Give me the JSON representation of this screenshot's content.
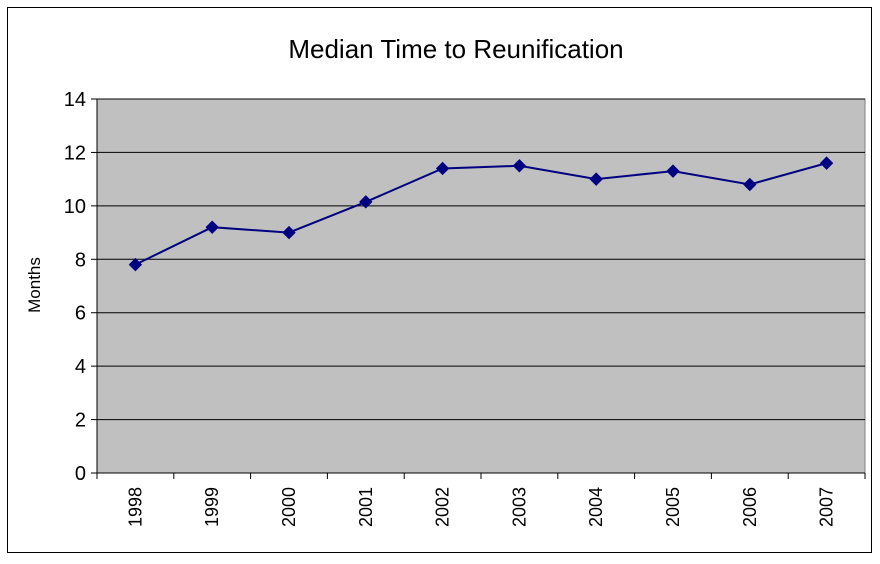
{
  "chart_data": {
    "type": "line",
    "title": "Median Time to Reunification",
    "xlabel": "",
    "ylabel": "Months",
    "categories": [
      "1998",
      "1999",
      "2000",
      "2001",
      "2002",
      "2003",
      "2004",
      "2005",
      "2006",
      "2007"
    ],
    "series": [
      {
        "values": [
          7.8,
          9.2,
          9.0,
          10.15,
          11.4,
          11.5,
          11.0,
          11.3,
          10.8,
          11.6
        ]
      }
    ],
    "ylim": [
      0,
      14
    ],
    "yticks": [
      "0",
      "2",
      "4",
      "6",
      "8",
      "10",
      "12",
      "14"
    ],
    "grid": true,
    "legend": "none",
    "colors": {
      "plot_background": "#c0c0c0",
      "series": "#000080",
      "gridline": "#000000"
    }
  }
}
